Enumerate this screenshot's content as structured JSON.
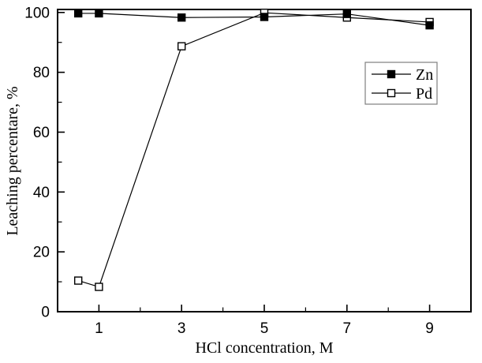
{
  "figure": {
    "background": "#ffffff",
    "frame_color": "#000000",
    "line_color": "#000000",
    "legend_border_color": "#7f7f7f",
    "tick_label_color": "#000000"
  },
  "chart_data": {
    "type": "line",
    "title": "",
    "xlabel": "HCl concentration, M",
    "ylabel": "Leaching percentare, %",
    "xlim": [
      0,
      10
    ],
    "ylim": [
      0,
      101
    ],
    "x_major_ticks": [
      1,
      3,
      5,
      7,
      9
    ],
    "x_minor_ticks": [
      2,
      4,
      6,
      8
    ],
    "y_major_ticks": [
      0,
      20,
      40,
      60,
      80,
      100
    ],
    "y_minor_ticks": [
      10,
      30,
      50,
      70,
      90
    ],
    "grid": false,
    "legend_position": "inside-upper-right",
    "series": [
      {
        "name": "Zn",
        "marker": "filled-square",
        "color": "#000000",
        "x": [
          0.5,
          1,
          3,
          5,
          7,
          9
        ],
        "y": [
          99.7,
          99.7,
          98.3,
          98.5,
          99.5,
          95.7
        ]
      },
      {
        "name": "Pd",
        "marker": "open-square",
        "color": "#000000",
        "x": [
          0.5,
          1,
          3,
          5,
          7,
          9
        ],
        "y": [
          10.4,
          8.3,
          88.7,
          99.9,
          98.3,
          96.8
        ]
      }
    ]
  }
}
